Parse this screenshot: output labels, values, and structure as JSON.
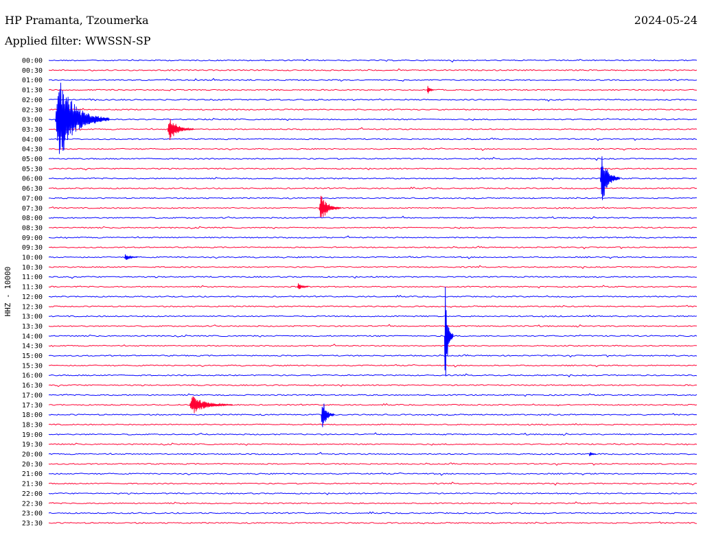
{
  "header": {
    "station": "HP Pramanta, Tzoumerka",
    "date": "2024-05-24",
    "filter": "Applied filter: WWSSN-SP"
  },
  "chart_data": {
    "type": "line",
    "title": "HP Pramanta, Tzoumerka",
    "ylabel": "HHZ - 10000",
    "row_labels": [
      "00:00",
      "00:30",
      "01:00",
      "01:30",
      "02:00",
      "02:30",
      "03:00",
      "03:30",
      "04:00",
      "04:30",
      "05:00",
      "05:30",
      "06:00",
      "06:30",
      "07:00",
      "07:30",
      "08:00",
      "08:30",
      "09:00",
      "09:30",
      "10:00",
      "10:30",
      "11:00",
      "11:30",
      "12:00",
      "12:30",
      "13:00",
      "13:30",
      "14:00",
      "14:30",
      "15:00",
      "15:30",
      "16:00",
      "16:30",
      "17:00",
      "17:30",
      "18:00",
      "18:30",
      "19:00",
      "19:30",
      "20:00",
      "20:30",
      "21:00",
      "21:30",
      "22:00",
      "22:30",
      "23:00",
      "23:30"
    ],
    "row_minutes": 30,
    "colors": [
      "#0000ff",
      "#ff0033"
    ],
    "events": [
      {
        "row": 6,
        "minute": 0.3,
        "amplitude": 60,
        "duration_min": 2.5
      },
      {
        "row": 7,
        "minute": 5.5,
        "amplitude": 18,
        "duration_min": 1.2
      },
      {
        "row": 3,
        "minute": 17.5,
        "amplitude": 8,
        "duration_min": 0.3
      },
      {
        "row": 12,
        "minute": 25.5,
        "amplitude": 40,
        "duration_min": 0.9
      },
      {
        "row": 15,
        "minute": 12.5,
        "amplitude": 22,
        "duration_min": 1.0
      },
      {
        "row": 20,
        "minute": 3.5,
        "amplitude": 6,
        "duration_min": 0.6
      },
      {
        "row": 23,
        "minute": 11.5,
        "amplitude": 7,
        "duration_min": 0.5
      },
      {
        "row": 28,
        "minute": 18.3,
        "amplitude": 80,
        "duration_min": 0.4
      },
      {
        "row": 35,
        "minute": 6.5,
        "amplitude": 14,
        "duration_min": 2.0
      },
      {
        "row": 36,
        "minute": 12.6,
        "amplitude": 28,
        "duration_min": 0.6
      },
      {
        "row": 40,
        "minute": 25.0,
        "amplitude": 5,
        "duration_min": 0.3
      }
    ]
  }
}
